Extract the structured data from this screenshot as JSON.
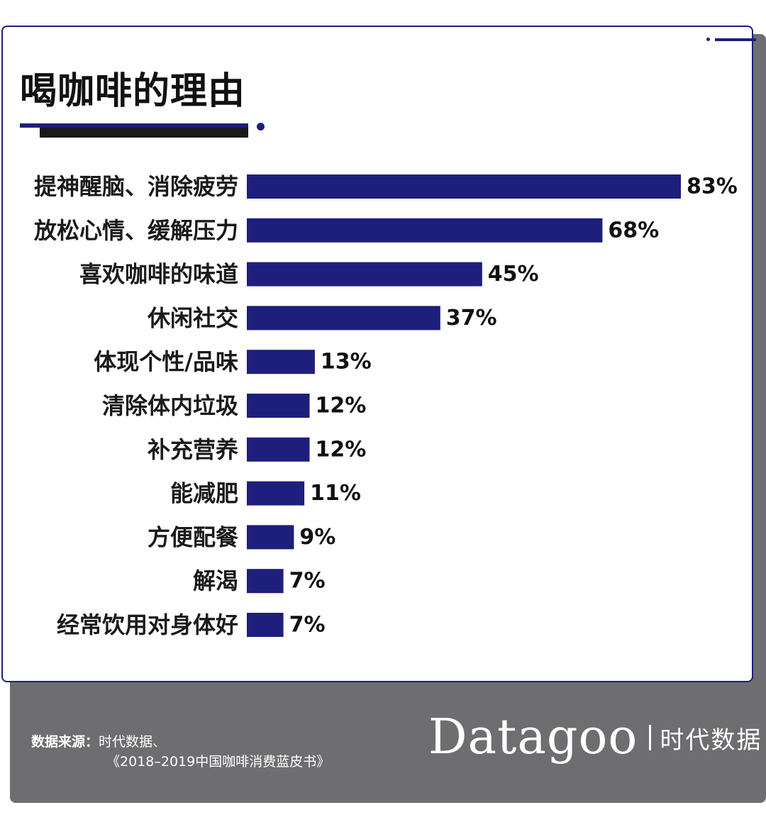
{
  "title": "喝咖啡的理由",
  "source": {
    "label": "数据来源：",
    "line1": "时代数据、",
    "line2": "《2018–2019中国咖啡消费蓝皮书》"
  },
  "brand": {
    "name": "Datagoo",
    "cn": "时代数据"
  },
  "colors": {
    "bar": "#1e1e7c",
    "footer": "#6e6e70",
    "title_underline": "#1a1a1a"
  },
  "chart_data": {
    "type": "bar",
    "orientation": "horizontal",
    "categories": [
      "提神醒脑、消除疲劳",
      "放松心情、缓解压力",
      "喜欢咖啡的味道",
      "休闲社交",
      "体现个性/品味",
      "清除体内垃圾",
      "补充营养",
      "能减肥",
      "方便配餐",
      "解渴",
      "经常饮用对身体好"
    ],
    "values": [
      83,
      68,
      45,
      37,
      13,
      12,
      12,
      11,
      9,
      7,
      7
    ],
    "value_labels": [
      "83%",
      "68%",
      "45%",
      "37%",
      "13%",
      "12%",
      "12%",
      "11%",
      "9%",
      "7%",
      "7%"
    ],
    "title": "喝咖啡的理由",
    "unit": "%",
    "grid": false,
    "legend": "none"
  }
}
